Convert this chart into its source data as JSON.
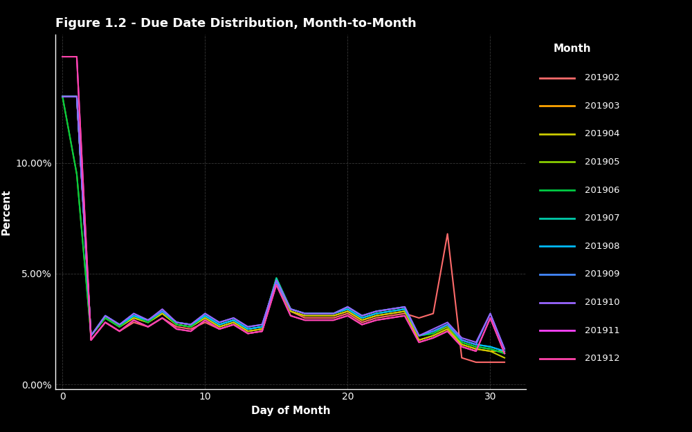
{
  "title": "Figure 1.2 - Due Date Distribution, Month-to-Month",
  "xlabel": "Day of Month",
  "ylabel": "Percent",
  "background_color": "#000000",
  "text_color": "#ffffff",
  "grid_color": "#444444",
  "legend_title": "Month",
  "xlim": [
    -0.5,
    32.5
  ],
  "ylim": [
    -0.002,
    0.158
  ],
  "yticks": [
    0.0,
    0.05,
    0.1
  ],
  "xticks": [
    0,
    10,
    20,
    30
  ],
  "series": [
    {
      "label": "201902",
      "color": "#FF6B6B",
      "x": [
        0,
        1,
        2,
        3,
        4,
        5,
        6,
        7,
        8,
        9,
        10,
        11,
        12,
        13,
        14,
        15,
        16,
        17,
        18,
        19,
        20,
        21,
        22,
        23,
        24,
        25,
        26,
        27,
        28,
        29,
        30,
        31
      ],
      "y": [
        0.13,
        0.13,
        0.02,
        0.028,
        0.024,
        0.028,
        0.026,
        0.03,
        0.026,
        0.025,
        0.028,
        0.025,
        0.027,
        0.023,
        0.024,
        0.046,
        0.033,
        0.03,
        0.03,
        0.03,
        0.032,
        0.028,
        0.03,
        0.031,
        0.032,
        0.03,
        0.032,
        0.068,
        0.012,
        0.01,
        0.01,
        0.01
      ]
    },
    {
      "label": "201903",
      "color": "#FFA500",
      "x": [
        0,
        1,
        2,
        3,
        4,
        5,
        6,
        7,
        8,
        9,
        10,
        11,
        12,
        13,
        14,
        15,
        16,
        17,
        18,
        19,
        20,
        21,
        22,
        23,
        24,
        25,
        26,
        27,
        28,
        29,
        30,
        31
      ],
      "y": [
        0.13,
        0.13,
        0.022,
        0.03,
        0.026,
        0.03,
        0.028,
        0.032,
        0.027,
        0.026,
        0.03,
        0.026,
        0.028,
        0.024,
        0.025,
        0.047,
        0.033,
        0.031,
        0.031,
        0.031,
        0.033,
        0.029,
        0.031,
        0.032,
        0.033,
        0.02,
        0.022,
        0.025,
        0.018,
        0.016,
        0.015,
        0.015
      ]
    },
    {
      "label": "201904",
      "color": "#CCCC00",
      "x": [
        0,
        1,
        2,
        3,
        4,
        5,
        6,
        7,
        8,
        9,
        10,
        11,
        12,
        13,
        14,
        15,
        16,
        17,
        18,
        19,
        20,
        21,
        22,
        23,
        24,
        25,
        26,
        27,
        28,
        29,
        30,
        31
      ],
      "y": [
        0.13,
        0.13,
        0.022,
        0.03,
        0.026,
        0.03,
        0.028,
        0.032,
        0.027,
        0.026,
        0.03,
        0.026,
        0.028,
        0.024,
        0.025,
        0.047,
        0.033,
        0.031,
        0.031,
        0.031,
        0.033,
        0.029,
        0.031,
        0.032,
        0.033,
        0.02,
        0.022,
        0.025,
        0.018,
        0.016,
        0.015,
        0.012
      ]
    },
    {
      "label": "201905",
      "color": "#88CC00",
      "x": [
        0,
        1,
        2,
        3,
        4,
        5,
        6,
        7,
        8,
        9,
        10,
        11,
        12,
        13,
        14,
        15,
        16,
        17,
        18,
        19,
        20,
        21,
        22,
        23,
        24,
        25,
        26,
        27,
        28,
        29,
        30,
        31
      ],
      "y": [
        0.13,
        0.095,
        0.022,
        0.03,
        0.026,
        0.031,
        0.028,
        0.033,
        0.027,
        0.026,
        0.031,
        0.027,
        0.029,
        0.025,
        0.026,
        0.048,
        0.034,
        0.032,
        0.032,
        0.032,
        0.034,
        0.03,
        0.032,
        0.033,
        0.034,
        0.022,
        0.023,
        0.026,
        0.019,
        0.017,
        0.016,
        0.014
      ]
    },
    {
      "label": "201906",
      "color": "#00CC44",
      "x": [
        0,
        1,
        2,
        3,
        4,
        5,
        6,
        7,
        8,
        9,
        10,
        11,
        12,
        13,
        14,
        15,
        16,
        17,
        18,
        19,
        20,
        21,
        22,
        23,
        24,
        25,
        26,
        27,
        28,
        29,
        30,
        31
      ],
      "y": [
        0.13,
        0.095,
        0.022,
        0.03,
        0.026,
        0.031,
        0.028,
        0.033,
        0.027,
        0.026,
        0.031,
        0.027,
        0.029,
        0.025,
        0.026,
        0.048,
        0.034,
        0.032,
        0.032,
        0.032,
        0.034,
        0.03,
        0.032,
        0.033,
        0.034,
        0.022,
        0.023,
        0.027,
        0.019,
        0.017,
        0.016,
        0.014
      ]
    },
    {
      "label": "201907",
      "color": "#00CCAA",
      "x": [
        0,
        1,
        2,
        3,
        4,
        5,
        6,
        7,
        8,
        9,
        10,
        11,
        12,
        13,
        14,
        15,
        16,
        17,
        18,
        19,
        20,
        21,
        22,
        23,
        24,
        25,
        26,
        27,
        28,
        29,
        30,
        31
      ],
      "y": [
        0.13,
        0.13,
        0.022,
        0.031,
        0.027,
        0.031,
        0.029,
        0.033,
        0.028,
        0.027,
        0.031,
        0.027,
        0.029,
        0.025,
        0.026,
        0.048,
        0.034,
        0.032,
        0.032,
        0.032,
        0.035,
        0.031,
        0.033,
        0.034,
        0.035,
        0.022,
        0.024,
        0.027,
        0.02,
        0.018,
        0.017,
        0.015
      ]
    },
    {
      "label": "201908",
      "color": "#00BBFF",
      "x": [
        0,
        1,
        2,
        3,
        4,
        5,
        6,
        7,
        8,
        9,
        10,
        11,
        12,
        13,
        14,
        15,
        16,
        17,
        18,
        19,
        20,
        21,
        22,
        23,
        24,
        25,
        26,
        27,
        28,
        29,
        30,
        31
      ],
      "y": [
        0.13,
        0.13,
        0.022,
        0.031,
        0.027,
        0.031,
        0.029,
        0.033,
        0.028,
        0.027,
        0.031,
        0.027,
        0.029,
        0.025,
        0.026,
        0.046,
        0.034,
        0.032,
        0.032,
        0.032,
        0.034,
        0.03,
        0.032,
        0.033,
        0.034,
        0.022,
        0.024,
        0.027,
        0.02,
        0.018,
        0.017,
        0.015
      ]
    },
    {
      "label": "201909",
      "color": "#4488FF",
      "x": [
        0,
        1,
        2,
        3,
        4,
        5,
        6,
        7,
        8,
        9,
        10,
        11,
        12,
        13,
        14,
        15,
        16,
        17,
        18,
        19,
        20,
        21,
        22,
        23,
        24,
        25,
        26,
        27,
        28,
        29,
        30,
        31
      ],
      "y": [
        0.13,
        0.13,
        0.022,
        0.031,
        0.027,
        0.032,
        0.029,
        0.033,
        0.028,
        0.027,
        0.032,
        0.028,
        0.03,
        0.026,
        0.027,
        0.047,
        0.034,
        0.032,
        0.032,
        0.032,
        0.035,
        0.031,
        0.033,
        0.034,
        0.035,
        0.022,
        0.024,
        0.027,
        0.02,
        0.018,
        0.032,
        0.016
      ]
    },
    {
      "label": "201910",
      "color": "#9966FF",
      "x": [
        0,
        1,
        2,
        3,
        4,
        5,
        6,
        7,
        8,
        9,
        10,
        11,
        12,
        13,
        14,
        15,
        16,
        17,
        18,
        19,
        20,
        21,
        22,
        23,
        24,
        25,
        26,
        27,
        28,
        29,
        30,
        31
      ],
      "y": [
        0.13,
        0.13,
        0.022,
        0.031,
        0.027,
        0.032,
        0.029,
        0.034,
        0.028,
        0.027,
        0.032,
        0.028,
        0.03,
        0.026,
        0.027,
        0.047,
        0.034,
        0.032,
        0.032,
        0.032,
        0.035,
        0.031,
        0.033,
        0.034,
        0.035,
        0.022,
        0.025,
        0.028,
        0.021,
        0.019,
        0.032,
        0.016
      ]
    },
    {
      "label": "201911",
      "color": "#FF44FF",
      "x": [
        0,
        1,
        2,
        3,
        4,
        5,
        6,
        7,
        8,
        9,
        10,
        11,
        12,
        13,
        14,
        15,
        16,
        17,
        18,
        19,
        20,
        21,
        22,
        23,
        24,
        25,
        26,
        27,
        28,
        29,
        30,
        31
      ],
      "y": [
        0.148,
        0.148,
        0.02,
        0.028,
        0.024,
        0.029,
        0.026,
        0.03,
        0.025,
        0.024,
        0.029,
        0.025,
        0.027,
        0.023,
        0.024,
        0.045,
        0.031,
        0.029,
        0.029,
        0.029,
        0.031,
        0.027,
        0.029,
        0.03,
        0.031,
        0.019,
        0.021,
        0.024,
        0.017,
        0.015,
        0.03,
        0.014
      ]
    },
    {
      "label": "201912",
      "color": "#FF44AA",
      "x": [
        0,
        1,
        2,
        3,
        4,
        5,
        6,
        7,
        8,
        9,
        10,
        11,
        12,
        13,
        14,
        15,
        16,
        17,
        18,
        19,
        20,
        21,
        22,
        23,
        24,
        25,
        26,
        27,
        28,
        29,
        30,
        31
      ],
      "y": [
        0.148,
        0.148,
        0.02,
        0.028,
        0.024,
        0.029,
        0.026,
        0.03,
        0.025,
        0.024,
        0.029,
        0.025,
        0.027,
        0.023,
        0.024,
        0.045,
        0.031,
        0.029,
        0.029,
        0.029,
        0.031,
        0.027,
        0.029,
        0.03,
        0.031,
        0.019,
        0.021,
        0.024,
        0.017,
        0.015,
        0.03,
        0.014
      ]
    }
  ]
}
